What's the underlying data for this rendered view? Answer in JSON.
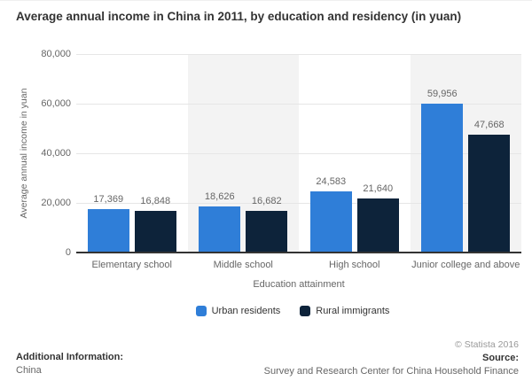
{
  "header": {
    "title": "Average annual income in China in 2011, by education and residency (in yuan)"
  },
  "chart_data": {
    "type": "bar",
    "title": "Average annual income in China in 2011, by education and residency (in yuan)",
    "categories": [
      "Elementary school",
      "Middle school",
      "High school",
      "Junior college and above"
    ],
    "series": [
      {
        "name": "Urban residents",
        "color": "#2f7ed8",
        "values": [
          17369,
          18626,
          24583,
          59956
        ]
      },
      {
        "name": "Rural immigrants",
        "color": "#0d233a",
        "values": [
          16848,
          16682,
          21640,
          47668
        ]
      }
    ],
    "xlabel": "Education attainment",
    "ylabel": "Average annual income in yuan",
    "ylim": [
      0,
      80000
    ],
    "yticks": [
      0,
      20000,
      40000,
      60000,
      80000
    ],
    "ytick_labels": [
      "0",
      "20,000",
      "40,000",
      "60,000",
      "80,000"
    ],
    "grid": true,
    "legend_position": "bottom",
    "plot_band_color": "#f3f3f3",
    "banded_category_indexes": [
      1,
      3
    ]
  },
  "footer": {
    "additional_info_label": "Additional Information:",
    "additional_info_value": "China",
    "copyright": "© Statista 2016",
    "source_label": "Source:",
    "source_value": "Survey and Research Center for China Household Finance"
  }
}
